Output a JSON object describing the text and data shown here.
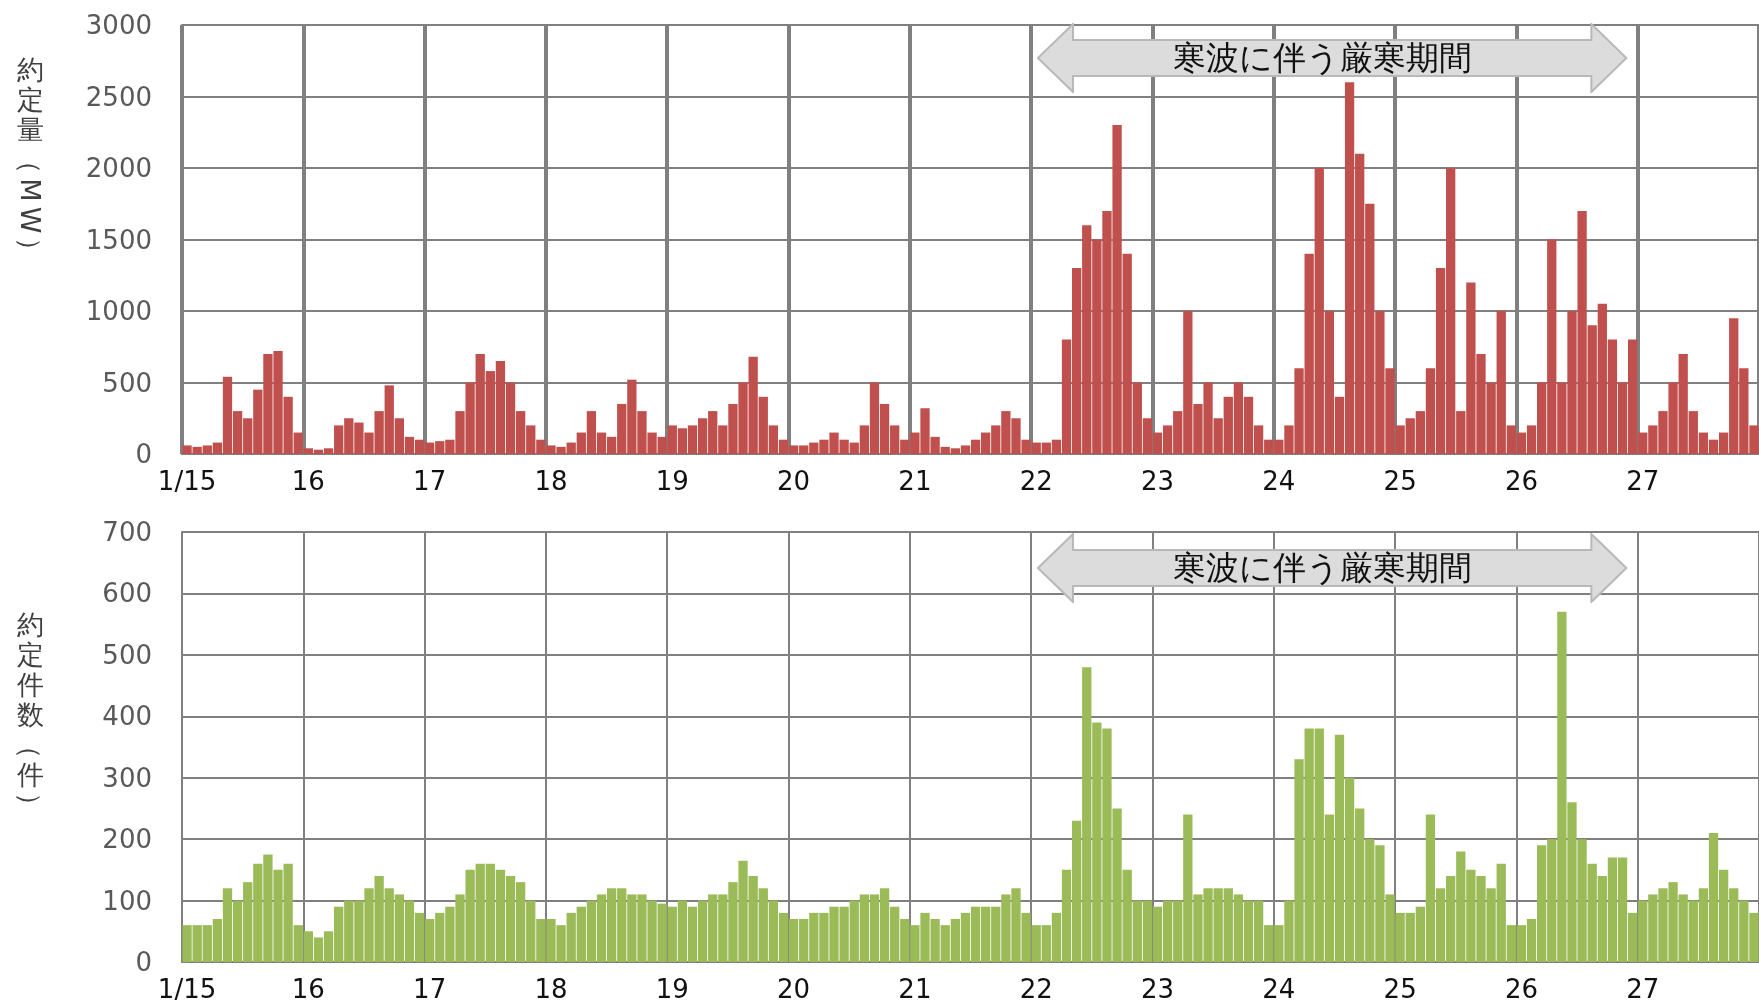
{
  "chart_data": [
    {
      "type": "bar",
      "ylabel": "約定量（MW）",
      "color": "#c0504d",
      "ylim": [
        0,
        3000
      ],
      "yticks": [
        0,
        500,
        1000,
        1500,
        2000,
        2500,
        3000
      ],
      "grid": true,
      "annotations": [
        "寒波に伴う厳寒期間"
      ],
      "categories": [
        "1/15",
        null,
        null,
        null,
        null,
        null,
        null,
        null,
        null,
        null,
        null,
        null,
        "16",
        null,
        null,
        null,
        null,
        null,
        null,
        null,
        null,
        null,
        null,
        null,
        "17",
        null,
        null,
        null,
        null,
        null,
        null,
        null,
        null,
        null,
        null,
        null,
        "18",
        null,
        null,
        null,
        null,
        null,
        null,
        null,
        null,
        null,
        null,
        null,
        "19",
        null,
        null,
        null,
        null,
        null,
        null,
        null,
        null,
        null,
        null,
        null,
        "20",
        null,
        null,
        null,
        null,
        null,
        null,
        null,
        null,
        null,
        null,
        null,
        "21",
        null,
        null,
        null,
        null,
        null,
        null,
        null,
        null,
        null,
        null,
        null,
        "22",
        null,
        null,
        null,
        null,
        null,
        null,
        null,
        null,
        null,
        null,
        null,
        "23",
        null,
        null,
        null,
        null,
        null,
        null,
        null,
        null,
        null,
        null,
        null,
        "24",
        null,
        null,
        null,
        null,
        null,
        null,
        null,
        null,
        null,
        null,
        null,
        "25",
        null,
        null,
        null,
        null,
        null,
        null,
        null,
        null,
        null,
        null,
        null,
        "26",
        null,
        null,
        null,
        null,
        null,
        null,
        null,
        null,
        null,
        null,
        null,
        "27",
        null,
        null,
        null,
        null,
        null,
        null,
        null,
        null,
        null,
        null,
        null
      ],
      "values": [
        60,
        50,
        60,
        80,
        540,
        300,
        250,
        450,
        700,
        720,
        400,
        150,
        40,
        30,
        40,
        200,
        250,
        220,
        150,
        300,
        480,
        250,
        120,
        100,
        80,
        90,
        100,
        300,
        500,
        700,
        580,
        650,
        500,
        300,
        200,
        100,
        60,
        50,
        80,
        150,
        300,
        150,
        120,
        350,
        520,
        300,
        150,
        120,
        200,
        180,
        200,
        250,
        300,
        200,
        350,
        500,
        680,
        400,
        200,
        100,
        60,
        60,
        80,
        100,
        150,
        100,
        80,
        200,
        500,
        350,
        200,
        100,
        150,
        320,
        120,
        50,
        40,
        60,
        100,
        150,
        200,
        300,
        250,
        100,
        80,
        80,
        100,
        800,
        1300,
        1600,
        1500,
        1700,
        2300,
        1400,
        500,
        250,
        150,
        200,
        300,
        1000,
        350,
        500,
        250,
        400,
        500,
        400,
        200,
        100,
        100,
        200,
        600,
        1400,
        2000,
        1000,
        400,
        2600,
        2100,
        1750,
        1000,
        600,
        200,
        250,
        300,
        600,
        1300,
        2000,
        300,
        1200,
        700,
        500,
        1000,
        200,
        150,
        200,
        500,
        1500,
        500,
        1000,
        1700,
        900,
        1050,
        800,
        500,
        800,
        150,
        200,
        300,
        500,
        700,
        300,
        150,
        100,
        150,
        950,
        600,
        200
      ]
    },
    {
      "type": "bar",
      "ylabel": "約定件数（件）",
      "color": "#9bbb59",
      "ylim": [
        0,
        700
      ],
      "yticks": [
        0,
        100,
        200,
        300,
        400,
        500,
        600,
        700
      ],
      "grid": true,
      "annotations": [
        "寒波に伴う厳寒期間"
      ],
      "categories": [
        "1/15",
        null,
        null,
        null,
        null,
        null,
        null,
        null,
        null,
        null,
        null,
        null,
        "16",
        null,
        null,
        null,
        null,
        null,
        null,
        null,
        null,
        null,
        null,
        null,
        "17",
        null,
        null,
        null,
        null,
        null,
        null,
        null,
        null,
        null,
        null,
        null,
        "18",
        null,
        null,
        null,
        null,
        null,
        null,
        null,
        null,
        null,
        null,
        null,
        "19",
        null,
        null,
        null,
        null,
        null,
        null,
        null,
        null,
        null,
        null,
        null,
        "20",
        null,
        null,
        null,
        null,
        null,
        null,
        null,
        null,
        null,
        null,
        null,
        "21",
        null,
        null,
        null,
        null,
        null,
        null,
        null,
        null,
        null,
        null,
        null,
        "22",
        null,
        null,
        null,
        null,
        null,
        null,
        null,
        null,
        null,
        null,
        null,
        "23",
        null,
        null,
        null,
        null,
        null,
        null,
        null,
        null,
        null,
        null,
        null,
        "24",
        null,
        null,
        null,
        null,
        null,
        null,
        null,
        null,
        null,
        null,
        null,
        "25",
        null,
        null,
        null,
        null,
        null,
        null,
        null,
        null,
        null,
        null,
        null,
        "26",
        null,
        null,
        null,
        null,
        null,
        null,
        null,
        null,
        null,
        null,
        null,
        "27",
        null,
        null,
        null,
        null,
        null,
        null,
        null,
        null,
        null,
        null,
        null
      ],
      "values": [
        60,
        60,
        60,
        70,
        120,
        100,
        130,
        160,
        175,
        150,
        160,
        60,
        50,
        40,
        50,
        90,
        100,
        100,
        120,
        140,
        120,
        110,
        100,
        80,
        70,
        80,
        90,
        110,
        150,
        160,
        160,
        150,
        140,
        130,
        100,
        70,
        70,
        60,
        80,
        90,
        100,
        110,
        120,
        120,
        110,
        110,
        100,
        95,
        90,
        100,
        90,
        100,
        110,
        110,
        130,
        165,
        140,
        120,
        100,
        80,
        70,
        70,
        80,
        80,
        90,
        90,
        100,
        110,
        110,
        120,
        90,
        70,
        60,
        80,
        70,
        60,
        70,
        80,
        90,
        90,
        90,
        110,
        120,
        80,
        60,
        60,
        80,
        150,
        230,
        480,
        390,
        380,
        250,
        150,
        100,
        100,
        90,
        100,
        100,
        240,
        110,
        120,
        120,
        120,
        110,
        100,
        100,
        60,
        60,
        100,
        330,
        380,
        380,
        240,
        370,
        300,
        250,
        200,
        190,
        110,
        80,
        80,
        90,
        240,
        120,
        140,
        180,
        150,
        140,
        120,
        160,
        60,
        60,
        70,
        190,
        200,
        570,
        260,
        200,
        160,
        140,
        170,
        170,
        80,
        100,
        110,
        120,
        130,
        110,
        100,
        120,
        210,
        150,
        120,
        100,
        80
      ]
    }
  ]
}
